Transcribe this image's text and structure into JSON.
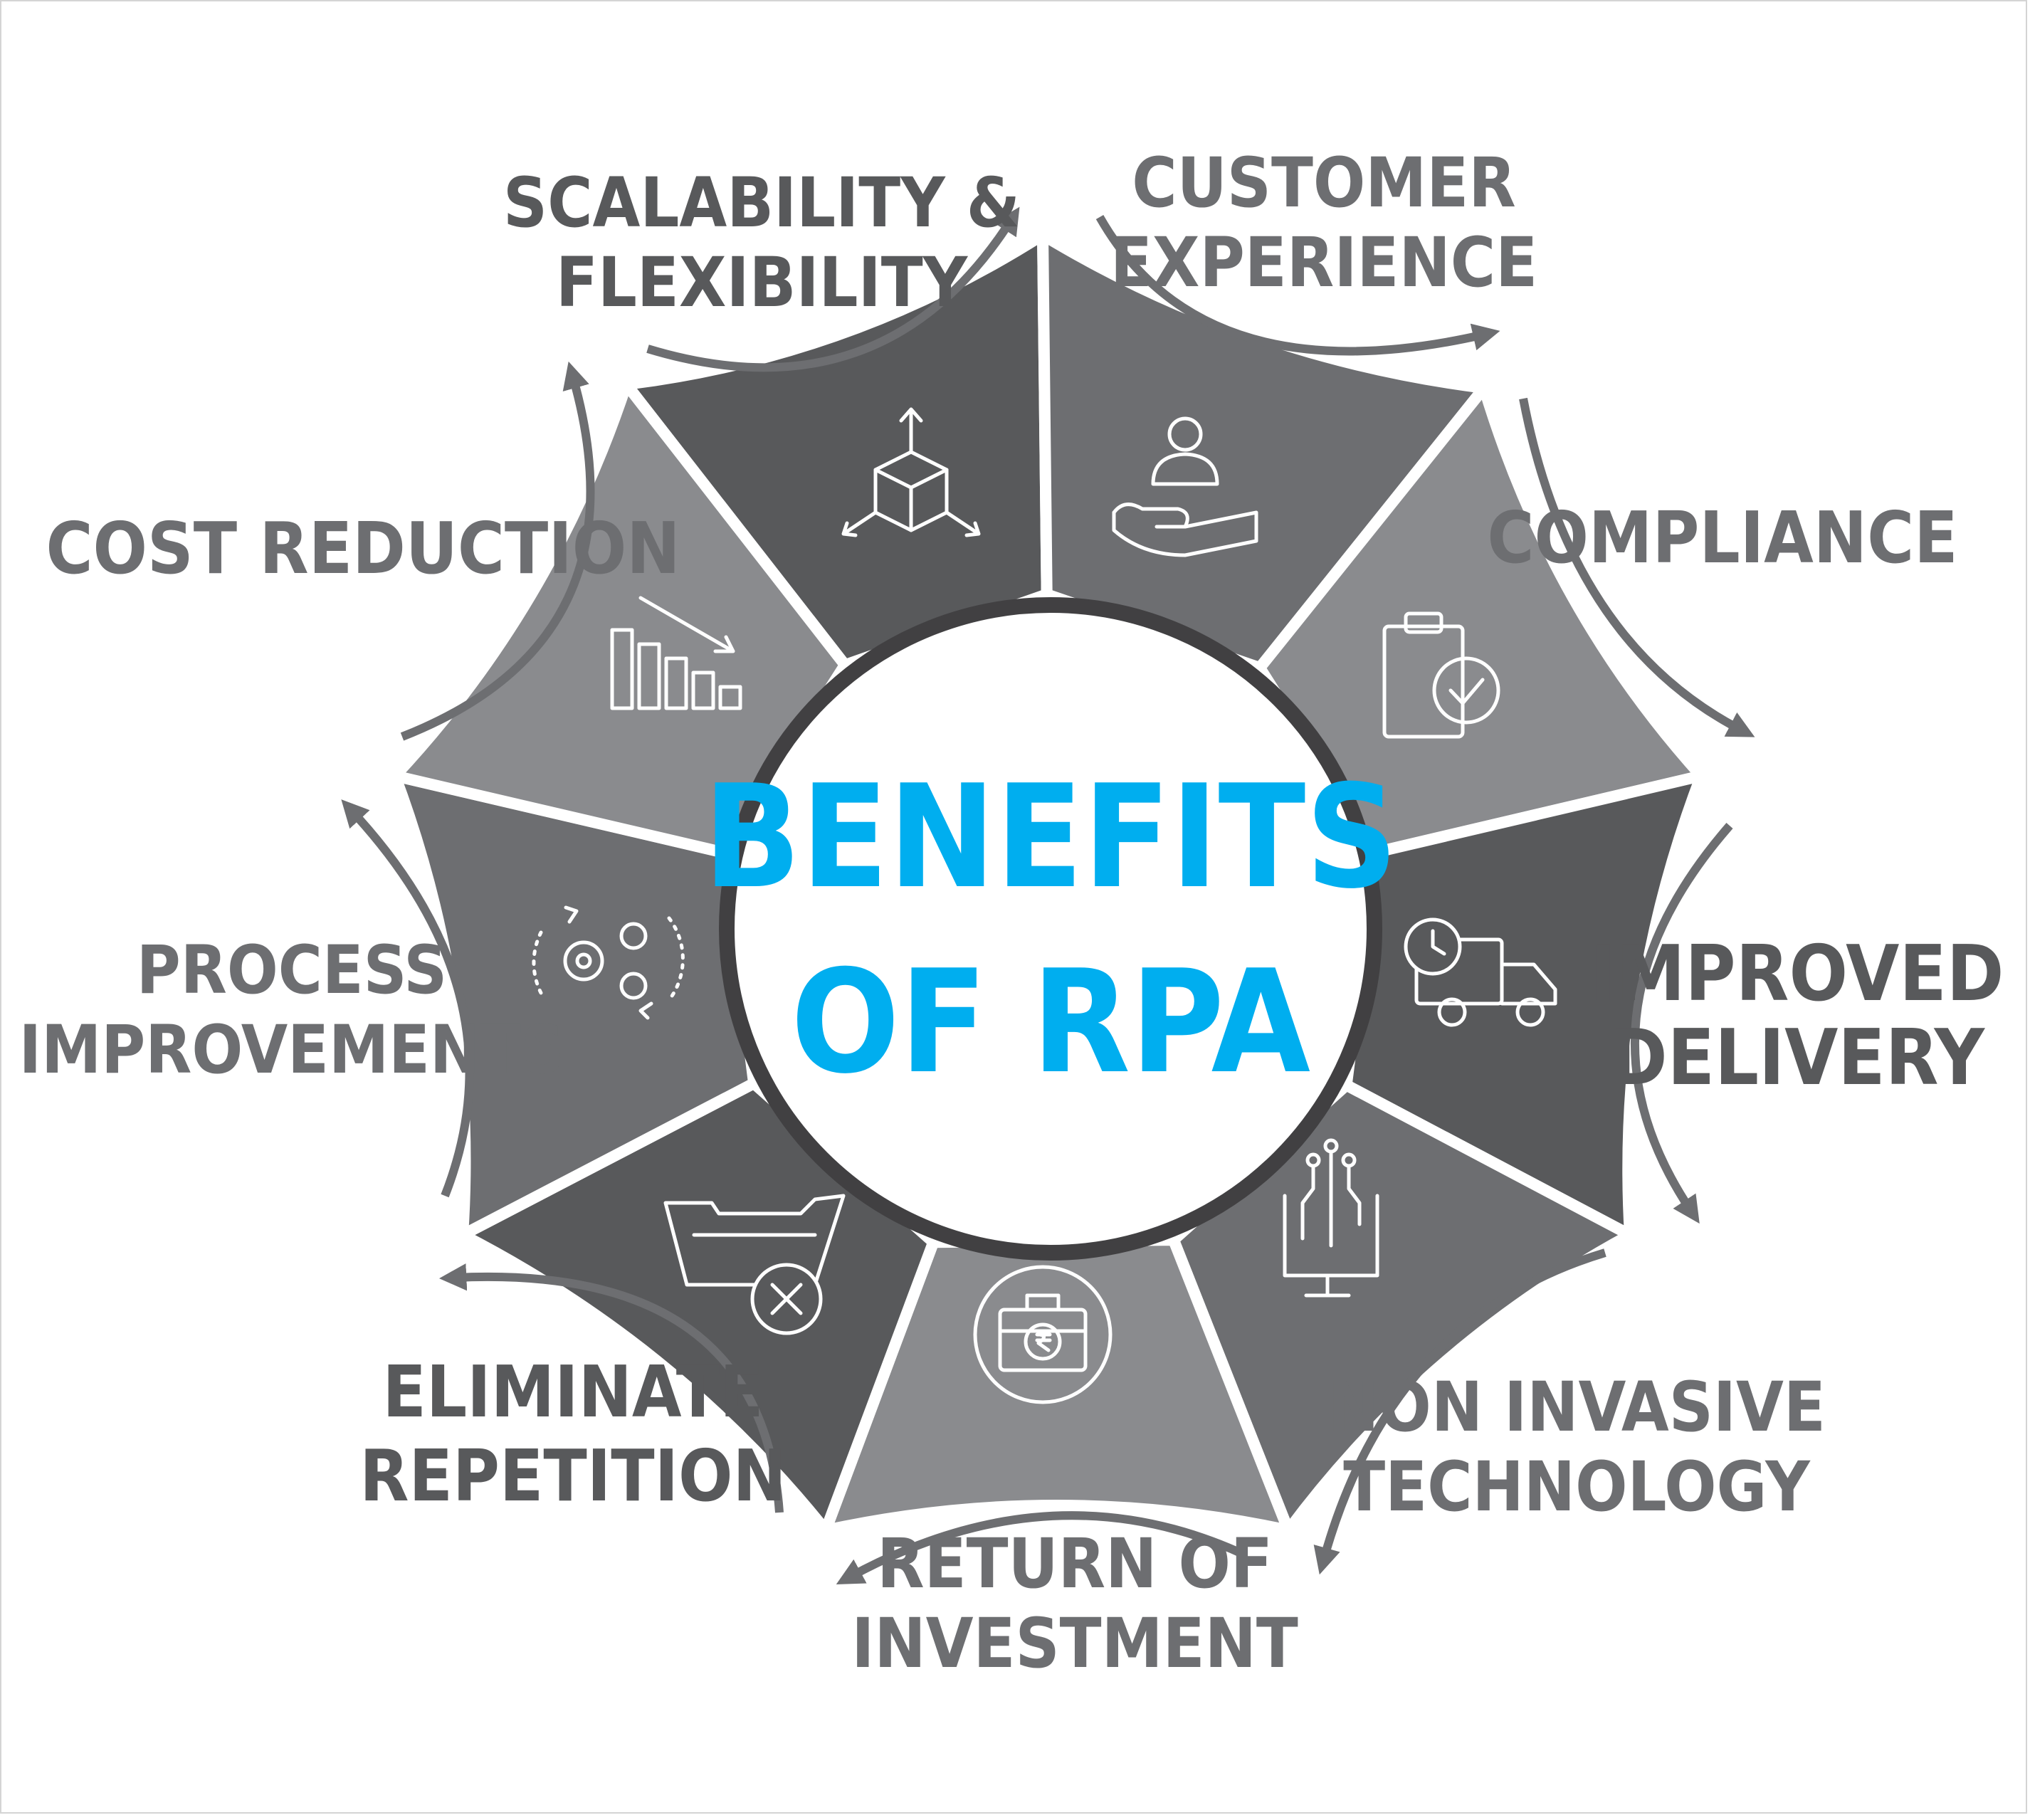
{
  "title": {
    "line1": "BENEFITS",
    "line2": "OF RPA"
  },
  "benefits": [
    {
      "lines": [
        "SCALABILITY &",
        "FLEXIBILITY"
      ],
      "icon": "cube-expand-icon"
    },
    {
      "lines": [
        "CUSTOMER",
        "EXPERIENCE"
      ],
      "icon": "customer-service-hand-icon"
    },
    {
      "lines": [
        "COMPLIANCE"
      ],
      "icon": "clipboard-check-icon"
    },
    {
      "lines": [
        "IMPROVED",
        "DELIVERY"
      ],
      "icon": "delivery-truck-clock-icon"
    },
    {
      "lines": [
        "NON INVASIVE",
        "TECHNOLOGY"
      ],
      "icon": "monitor-circuit-icon"
    },
    {
      "lines": [
        "RETURN OF",
        "INVESTMENT"
      ],
      "icon": "briefcase-rupee-icon"
    },
    {
      "lines": [
        "ELIMINATE",
        "REPETITION"
      ],
      "icon": "folder-delete-icon"
    },
    {
      "lines": [
        "PROCESS",
        "IMPROVEMENTS"
      ],
      "icon": "gears-cycle-icon"
    },
    {
      "lines": [
        "COST REDUCTION"
      ],
      "icon": "bar-chart-decline-icon"
    }
  ],
  "colors": {
    "accent": "#00aeef",
    "segment_dark": "#58595b",
    "segment_mid": "#6d6e71",
    "segment_light": "#8a8b8e",
    "ring": "#414042",
    "label_text": "#6d6e71",
    "label_text_dark": "#58595b",
    "arrow": "#6d6e71"
  }
}
